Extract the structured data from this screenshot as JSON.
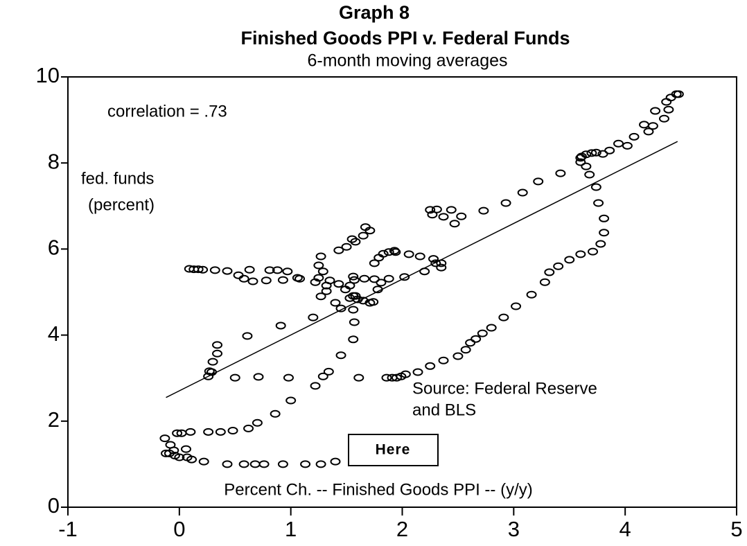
{
  "chart_data": {
    "type": "scatter",
    "title": "Graph 8",
    "subtitle_main": "Finished Goods PPI v. Federal Funds",
    "subtitle": "6-month moving averages",
    "x_label": "Percent Ch. -- Finished Goods PPI -- (y/y)",
    "y_label": [
      "fed. funds",
      "(percent)"
    ],
    "annotations": {
      "correlation": "correlation = .73",
      "source": [
        "Source: Federal Reserve",
        "and BLS"
      ],
      "button": "Here"
    },
    "xlim": [
      -1,
      5
    ],
    "ylim": [
      0,
      10
    ],
    "xticks": [
      -1,
      0,
      1,
      2,
      3,
      4,
      5
    ],
    "yticks": [
      0,
      2,
      4,
      6,
      8,
      10
    ],
    "fit_line": {
      "x": [
        -0.12,
        4.47
      ],
      "y": [
        2.55,
        8.5
      ],
      "color": "#000000"
    },
    "series": [
      {
        "color": "#000000",
        "x": [
          -0.13,
          -0.08,
          -0.05,
          -0.12,
          -0.09,
          -0.04,
          0,
          0.06,
          0.07,
          0.11,
          0.22,
          0.43,
          0.58,
          0.68,
          0.76,
          0.93,
          1.13,
          1.27,
          1.4,
          -0.02,
          0.02,
          0.1,
          0.26,
          0.37,
          0.48,
          0.62,
          0.7,
          0.86,
          1.0,
          1.22,
          1.29,
          1.34,
          1.45,
          1.56,
          1.57,
          1.56,
          1.56,
          1.53,
          1.86,
          1.91,
          1.95,
          1.99,
          2.03,
          2.14,
          2.25,
          2.37,
          2.5,
          2.57,
          2.61,
          2.66,
          2.72,
          2.8,
          2.91,
          3.02,
          3.16,
          3.28,
          3.32,
          3.4,
          3.5,
          3.6,
          3.71,
          3.78,
          3.81,
          3.81,
          3.76,
          3.74,
          3.68,
          3.65,
          3.6,
          3.61,
          3.65,
          3.7,
          3.74,
          3.8,
          3.86,
          3.94,
          4.02,
          4.08,
          4.21,
          4.17,
          4.25,
          4.27,
          4.35,
          4.39,
          4.37,
          4.41,
          4.46,
          4.48,
          3.6,
          3.42,
          3.22,
          3.08,
          2.93,
          2.73,
          2.53,
          2.47,
          2.37,
          2.31,
          2.25,
          2.27,
          2.44,
          0.09,
          0.13,
          0.17,
          0.21,
          0.32,
          0.43,
          0.53,
          0.58,
          0.63,
          0.66,
          0.78,
          0.81,
          0.88,
          0.93,
          0.97,
          1.06,
          1.08,
          1.22,
          1.25,
          1.29,
          1.25,
          1.27,
          1.32,
          1.35,
          1.27,
          1.32,
          1.4,
          1.43,
          1.45,
          1.43,
          1.5,
          1.55,
          1.58,
          1.65,
          1.67,
          1.71,
          1.49,
          1.53,
          1.58,
          1.6,
          1.65,
          1.71,
          1.74,
          1.78,
          1.81,
          1.75,
          1.66,
          1.57,
          1.56,
          1.88,
          2.02,
          1.75,
          1.79,
          1.83,
          1.88,
          1.93,
          1.94,
          2.06,
          2.16,
          2.28,
          2.3,
          2.35,
          2.35,
          2.2,
          0.26,
          0.29,
          0.3,
          0.34,
          0.34,
          0.27,
          0.5,
          0.71,
          0.98,
          0.61,
          0.91,
          1.2,
          1.61
        ],
        "values": [
          1.6,
          1.45,
          1.32,
          1.25,
          1.25,
          1.2,
          1.16,
          1.35,
          1.16,
          1.11,
          1.06,
          1.0,
          1.0,
          1.0,
          1.0,
          1.0,
          1.0,
          1.0,
          1.06,
          1.72,
          1.72,
          1.75,
          1.75,
          1.75,
          1.78,
          1.83,
          1.96,
          2.17,
          2.48,
          2.82,
          3.04,
          3.15,
          3.53,
          3.9,
          4.3,
          4.59,
          4.91,
          5.15,
          3.01,
          3.01,
          3.01,
          3.04,
          3.09,
          3.14,
          3.28,
          3.41,
          3.51,
          3.66,
          3.82,
          3.91,
          4.04,
          4.17,
          4.41,
          4.67,
          4.94,
          5.23,
          5.46,
          5.6,
          5.75,
          5.88,
          5.94,
          6.12,
          6.38,
          6.71,
          7.07,
          7.44,
          7.73,
          7.92,
          8.02,
          8.15,
          8.2,
          8.23,
          8.24,
          8.21,
          8.29,
          8.45,
          8.4,
          8.61,
          8.73,
          8.89,
          8.86,
          9.21,
          9.03,
          9.24,
          9.42,
          9.52,
          9.6,
          9.6,
          8.12,
          7.76,
          7.57,
          7.31,
          7.07,
          6.89,
          6.76,
          6.59,
          6.75,
          6.92,
          6.91,
          6.8,
          6.91,
          5.54,
          5.53,
          5.53,
          5.52,
          5.51,
          5.49,
          5.39,
          5.31,
          5.52,
          5.25,
          5.27,
          5.51,
          5.51,
          5.28,
          5.48,
          5.33,
          5.31,
          5.23,
          5.33,
          5.48,
          5.62,
          5.83,
          5.15,
          5.27,
          4.9,
          5.02,
          4.75,
          5.19,
          4.62,
          5.97,
          6.05,
          6.23,
          6.17,
          6.31,
          6.51,
          6.43,
          5.06,
          4.86,
          4.91,
          4.83,
          4.8,
          4.75,
          4.77,
          5.06,
          5.22,
          5.3,
          5.31,
          5.28,
          5.36,
          5.31,
          5.35,
          5.67,
          5.8,
          5.89,
          5.93,
          5.96,
          5.93,
          5.88,
          5.83,
          5.77,
          5.67,
          5.57,
          5.67,
          5.48,
          3.04,
          3.14,
          3.38,
          3.57,
          3.77,
          3.16,
          3.01,
          3.03,
          3.01,
          3.98,
          4.22,
          4.41,
          3.01
        ]
      }
    ]
  }
}
